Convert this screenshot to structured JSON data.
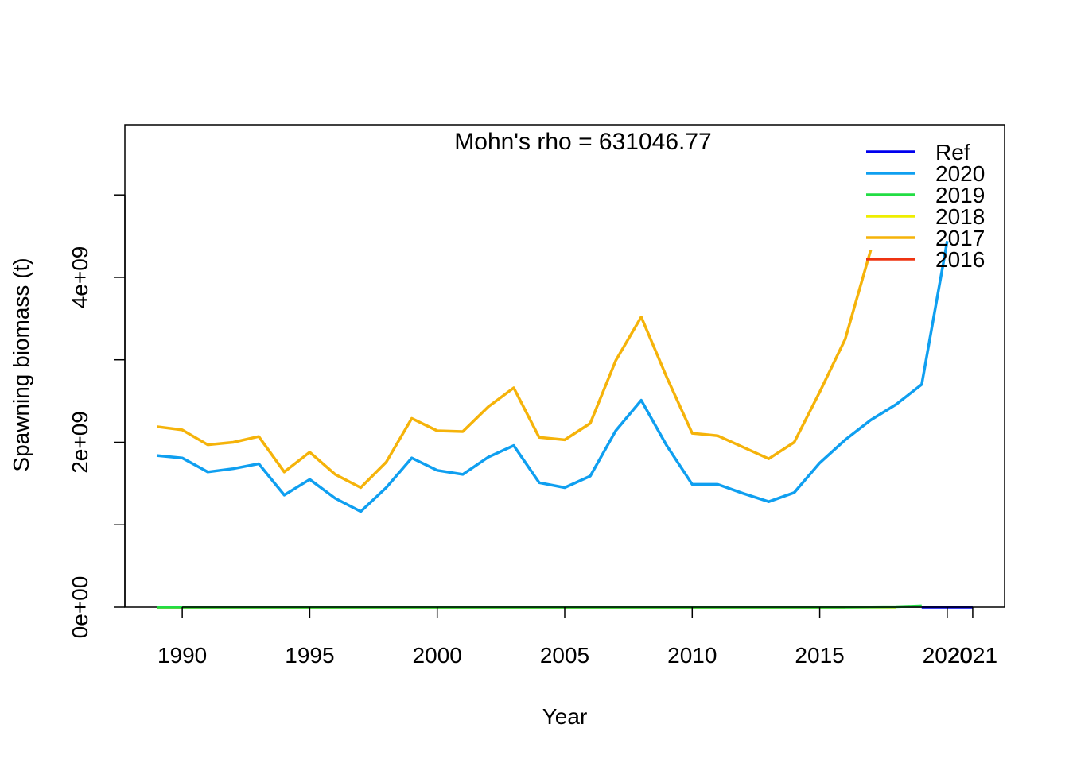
{
  "chart_data": {
    "type": "line",
    "title": "Mohn's rho = 631046.77",
    "xlabel": "Year",
    "ylabel": "Spawning biomass (t)",
    "xlim": [
      1987.75,
      2022.25
    ],
    "ylim": [
      0,
      5850000000
    ],
    "x_ticks": [
      1990,
      1995,
      2000,
      2005,
      2010,
      2015,
      2020,
      2021
    ],
    "x_tick_labels": [
      "1990",
      "1995",
      "2000",
      "2005",
      "2010",
      "2015",
      "2020",
      "2021"
    ],
    "y_ticks": [
      0,
      1000000000,
      2000000000,
      3000000000,
      4000000000,
      5000000000
    ],
    "y_tick_labels": [
      "0e+00",
      "",
      "2e+09",
      "",
      "4e+09",
      ""
    ],
    "legend_position": "top-right",
    "grid": false,
    "series": [
      {
        "name": "Ref",
        "color": "#0000ee",
        "x": [
          2019,
          2020,
          2021
        ],
        "y": [
          0,
          0,
          0
        ]
      },
      {
        "name": "2020",
        "color": "#0f9ff0",
        "x": [
          1989,
          1990,
          1991,
          1992,
          1993,
          1994,
          1995,
          1996,
          1997,
          1998,
          1999,
          2000,
          2001,
          2002,
          2003,
          2004,
          2005,
          2006,
          2007,
          2008,
          2009,
          2010,
          2011,
          2012,
          2013,
          2014,
          2015,
          2016,
          2017,
          2018,
          2019,
          2020
        ],
        "y": [
          1840000000,
          1810000000,
          1640000000,
          1680000000,
          1740000000,
          1360000000,
          1550000000,
          1320000000,
          1160000000,
          1450000000,
          1810000000,
          1660000000,
          1610000000,
          1820000000,
          1960000000,
          1510000000,
          1450000000,
          1590000000,
          2140000000,
          2510000000,
          1960000000,
          1490000000,
          1490000000,
          1380000000,
          1280000000,
          1390000000,
          1750000000,
          2030000000,
          2270000000,
          2460000000,
          2700000000,
          4440000000
        ]
      },
      {
        "name": "2019",
        "color": "#22dd44",
        "x": [
          1989,
          1995,
          2000,
          2005,
          2010,
          2015,
          2016,
          2017,
          2018,
          2019
        ],
        "y": [
          0,
          0,
          0,
          0,
          0,
          0,
          0,
          2000000,
          5000000,
          15000000
        ]
      },
      {
        "name": "2018",
        "color": "#eeee00",
        "x": [
          1989,
          1995,
          2000,
          2005,
          2010,
          2015,
          2018
        ],
        "y": [
          0,
          0,
          0,
          0,
          0,
          0,
          0
        ]
      },
      {
        "name": "2017",
        "color": "#f5b30a",
        "x": [
          1989,
          1990,
          1991,
          1992,
          1993,
          1994,
          1995,
          1996,
          1997,
          1998,
          1999,
          2000,
          2001,
          2002,
          2003,
          2004,
          2005,
          2006,
          2007,
          2008,
          2009,
          2010,
          2011,
          2012,
          2013,
          2014,
          2015,
          2016,
          2017
        ],
        "y": [
          2190000000,
          2150000000,
          1970000000,
          2000000000,
          2070000000,
          1640000000,
          1880000000,
          1610000000,
          1450000000,
          1760000000,
          2290000000,
          2140000000,
          2130000000,
          2430000000,
          2660000000,
          2060000000,
          2030000000,
          2230000000,
          2990000000,
          3520000000,
          2790000000,
          2110000000,
          2080000000,
          1940000000,
          1800000000,
          2000000000,
          2610000000,
          3250000000,
          4330000000
        ]
      },
      {
        "name": "2016",
        "color": "#ee3311",
        "x": [
          1989,
          1995,
          2000,
          2005,
          2010,
          2015,
          2016
        ],
        "y": [
          0,
          0,
          0,
          0,
          0,
          0,
          0
        ]
      }
    ]
  }
}
